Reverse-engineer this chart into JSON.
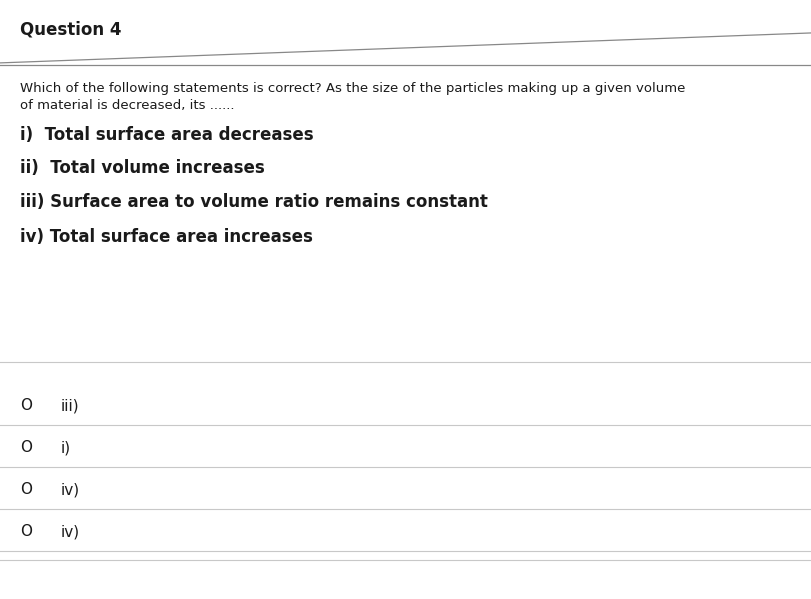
{
  "title": "Question 4",
  "question_line1": "Which of the following statements is correct? As the size of the particles making up a given volume",
  "question_line2": "of material is decreased, its ......",
  "options": [
    "i)  Total surface area decreases",
    "ii)  Total volume increases",
    "iii) Surface area to volume ratio remains constant",
    "iv) Total surface area increases"
  ],
  "answers": [
    "iii)",
    "i)",
    "iv)",
    "iv)"
  ],
  "bg_color": "#ffffff",
  "text_color": "#1a1a1a",
  "title_fontsize": 12,
  "question_fontsize": 9.5,
  "option_fontsize": 12,
  "answer_fontsize": 11,
  "line_color": "#c8c8c8",
  "title_diag_color": "#888888",
  "title_horiz_color": "#888888"
}
